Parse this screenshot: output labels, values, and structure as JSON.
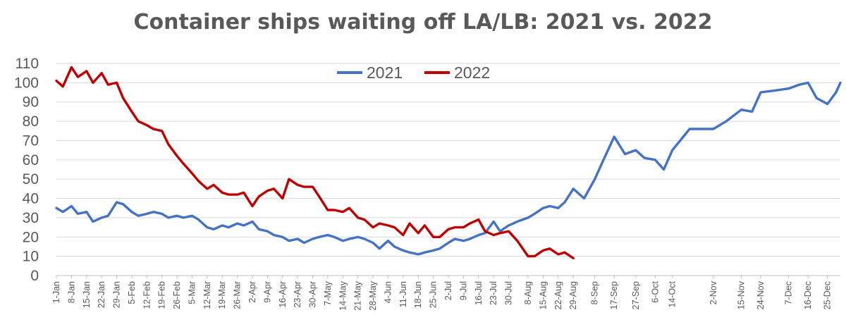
{
  "chart_data": {
    "type": "line",
    "title": "Container ships waiting off LA/LB: 2021 vs. 2022",
    "xlabel": "",
    "ylabel": "",
    "ylim": [
      0,
      110
    ],
    "yticks": [
      0,
      10,
      20,
      30,
      40,
      50,
      60,
      70,
      80,
      90,
      100,
      110
    ],
    "grid": "horizontal",
    "legend_position": "top-center",
    "x_tick_labels": [
      "1-Jan",
      "8-Jan",
      "15-Jan",
      "22-Jan",
      "29-Jan",
      "5-Feb",
      "12-Feb",
      "19-Feb",
      "26-Feb",
      "5-Mar",
      "12-Mar",
      "19-Mar",
      "26-Mar",
      "2-Apr",
      "9-Apr",
      "16-Apr",
      "23-Apr",
      "30-Apr",
      "7-May",
      "14-May",
      "21-May",
      "28-May",
      "4-Jun",
      "11-Jun",
      "18-Jun",
      "25-Jun",
      "2-Jul",
      "9-Jul",
      "16-Jul",
      "23-Jul",
      "30-Jul",
      "8-Aug",
      "15-Aug",
      "22-Aug",
      "29-Aug",
      "8-Sep",
      "17-Sep",
      "27-Sep",
      "6-Oct",
      "14-Oct",
      "2-Nov",
      "15-Nov",
      "24-Nov",
      "7-Dec",
      "16-Dec",
      "25-Dec"
    ],
    "series": [
      {
        "name": "2021",
        "color": "#4472C4",
        "x": [
          "1-Jan",
          "4-Jan",
          "8-Jan",
          "11-Jan",
          "15-Jan",
          "18-Jan",
          "22-Jan",
          "25-Jan",
          "29-Jan",
          "1-Feb",
          "5-Feb",
          "8-Feb",
          "12-Feb",
          "15-Feb",
          "19-Feb",
          "22-Feb",
          "26-Feb",
          "1-Mar",
          "5-Mar",
          "8-Mar",
          "12-Mar",
          "15-Mar",
          "19-Mar",
          "22-Mar",
          "26-Mar",
          "29-Mar",
          "2-Apr",
          "5-Apr",
          "9-Apr",
          "12-Apr",
          "16-Apr",
          "19-Apr",
          "23-Apr",
          "26-Apr",
          "30-Apr",
          "3-May",
          "7-May",
          "10-May",
          "14-May",
          "17-May",
          "21-May",
          "24-May",
          "28-May",
          "31-May",
          "4-Jun",
          "7-Jun",
          "11-Jun",
          "14-Jun",
          "18-Jun",
          "21-Jun",
          "25-Jun",
          "28-Jun",
          "2-Jul",
          "5-Jul",
          "9-Jul",
          "12-Jul",
          "16-Jul",
          "19-Jul",
          "23-Jul",
          "26-Jul",
          "30-Jul",
          "3-Aug",
          "8-Aug",
          "11-Aug",
          "15-Aug",
          "18-Aug",
          "22-Aug",
          "25-Aug",
          "29-Aug",
          "3-Sep",
          "8-Sep",
          "12-Sep",
          "17-Sep",
          "22-Sep",
          "27-Sep",
          "1-Oct",
          "6-Oct",
          "10-Oct",
          "14-Oct",
          "22-Oct",
          "2-Nov",
          "8-Nov",
          "15-Nov",
          "20-Nov",
          "24-Nov",
          "1-Dec",
          "7-Dec",
          "12-Dec",
          "16-Dec",
          "20-Dec",
          "25-Dec",
          "29-Dec",
          "31-Dec"
        ],
        "values": [
          35,
          33,
          36,
          32,
          33,
          28,
          30,
          31,
          38,
          37,
          33,
          31,
          32,
          33,
          32,
          30,
          31,
          30,
          31,
          29,
          25,
          24,
          26,
          25,
          27,
          26,
          28,
          24,
          23,
          21,
          20,
          18,
          19,
          17,
          19,
          20,
          21,
          20,
          18,
          19,
          20,
          19,
          17,
          14,
          18,
          15,
          13,
          12,
          11,
          12,
          13,
          14,
          17,
          19,
          18,
          19,
          21,
          22,
          28,
          23,
          26,
          28,
          30,
          32,
          35,
          36,
          35,
          38,
          45,
          40,
          50,
          60,
          72,
          63,
          65,
          61,
          60,
          55,
          65,
          76,
          76,
          80,
          86,
          85,
          95,
          96,
          97,
          99,
          100,
          92,
          89,
          95,
          100
        ]
      },
      {
        "name": "2022",
        "color": "#C00000",
        "x": [
          "1-Jan",
          "4-Jan",
          "8-Jan",
          "11-Jan",
          "15-Jan",
          "18-Jan",
          "22-Jan",
          "25-Jan",
          "29-Jan",
          "1-Feb",
          "5-Feb",
          "8-Feb",
          "12-Feb",
          "15-Feb",
          "19-Feb",
          "22-Feb",
          "26-Feb",
          "1-Mar",
          "5-Mar",
          "8-Mar",
          "12-Mar",
          "15-Mar",
          "19-Mar",
          "22-Mar",
          "26-Mar",
          "29-Mar",
          "2-Apr",
          "5-Apr",
          "9-Apr",
          "12-Apr",
          "16-Apr",
          "19-Apr",
          "23-Apr",
          "26-Apr",
          "30-Apr",
          "3-May",
          "7-May",
          "10-May",
          "14-May",
          "17-May",
          "21-May",
          "24-May",
          "28-May",
          "31-May",
          "4-Jun",
          "7-Jun",
          "11-Jun",
          "14-Jun",
          "18-Jun",
          "21-Jun",
          "25-Jun",
          "28-Jun",
          "2-Jul",
          "5-Jul",
          "9-Jul",
          "12-Jul",
          "16-Jul",
          "19-Jul",
          "23-Jul",
          "26-Jul",
          "30-Jul",
          "3-Aug",
          "8-Aug",
          "11-Aug",
          "15-Aug",
          "18-Aug",
          "22-Aug",
          "25-Aug",
          "29-Aug"
        ],
        "values": [
          101,
          98,
          108,
          103,
          106,
          100,
          105,
          99,
          100,
          92,
          85,
          80,
          78,
          76,
          75,
          68,
          62,
          58,
          53,
          49,
          45,
          47,
          43,
          42,
          42,
          43,
          36,
          41,
          44,
          45,
          40,
          50,
          47,
          46,
          46,
          41,
          34,
          34,
          33,
          35,
          30,
          29,
          25,
          27,
          26,
          25,
          21,
          27,
          22,
          26,
          20,
          20,
          24,
          25,
          25,
          27,
          29,
          23,
          21,
          22,
          23,
          18,
          10,
          10,
          13,
          14,
          11,
          12,
          9
        ]
      }
    ]
  }
}
